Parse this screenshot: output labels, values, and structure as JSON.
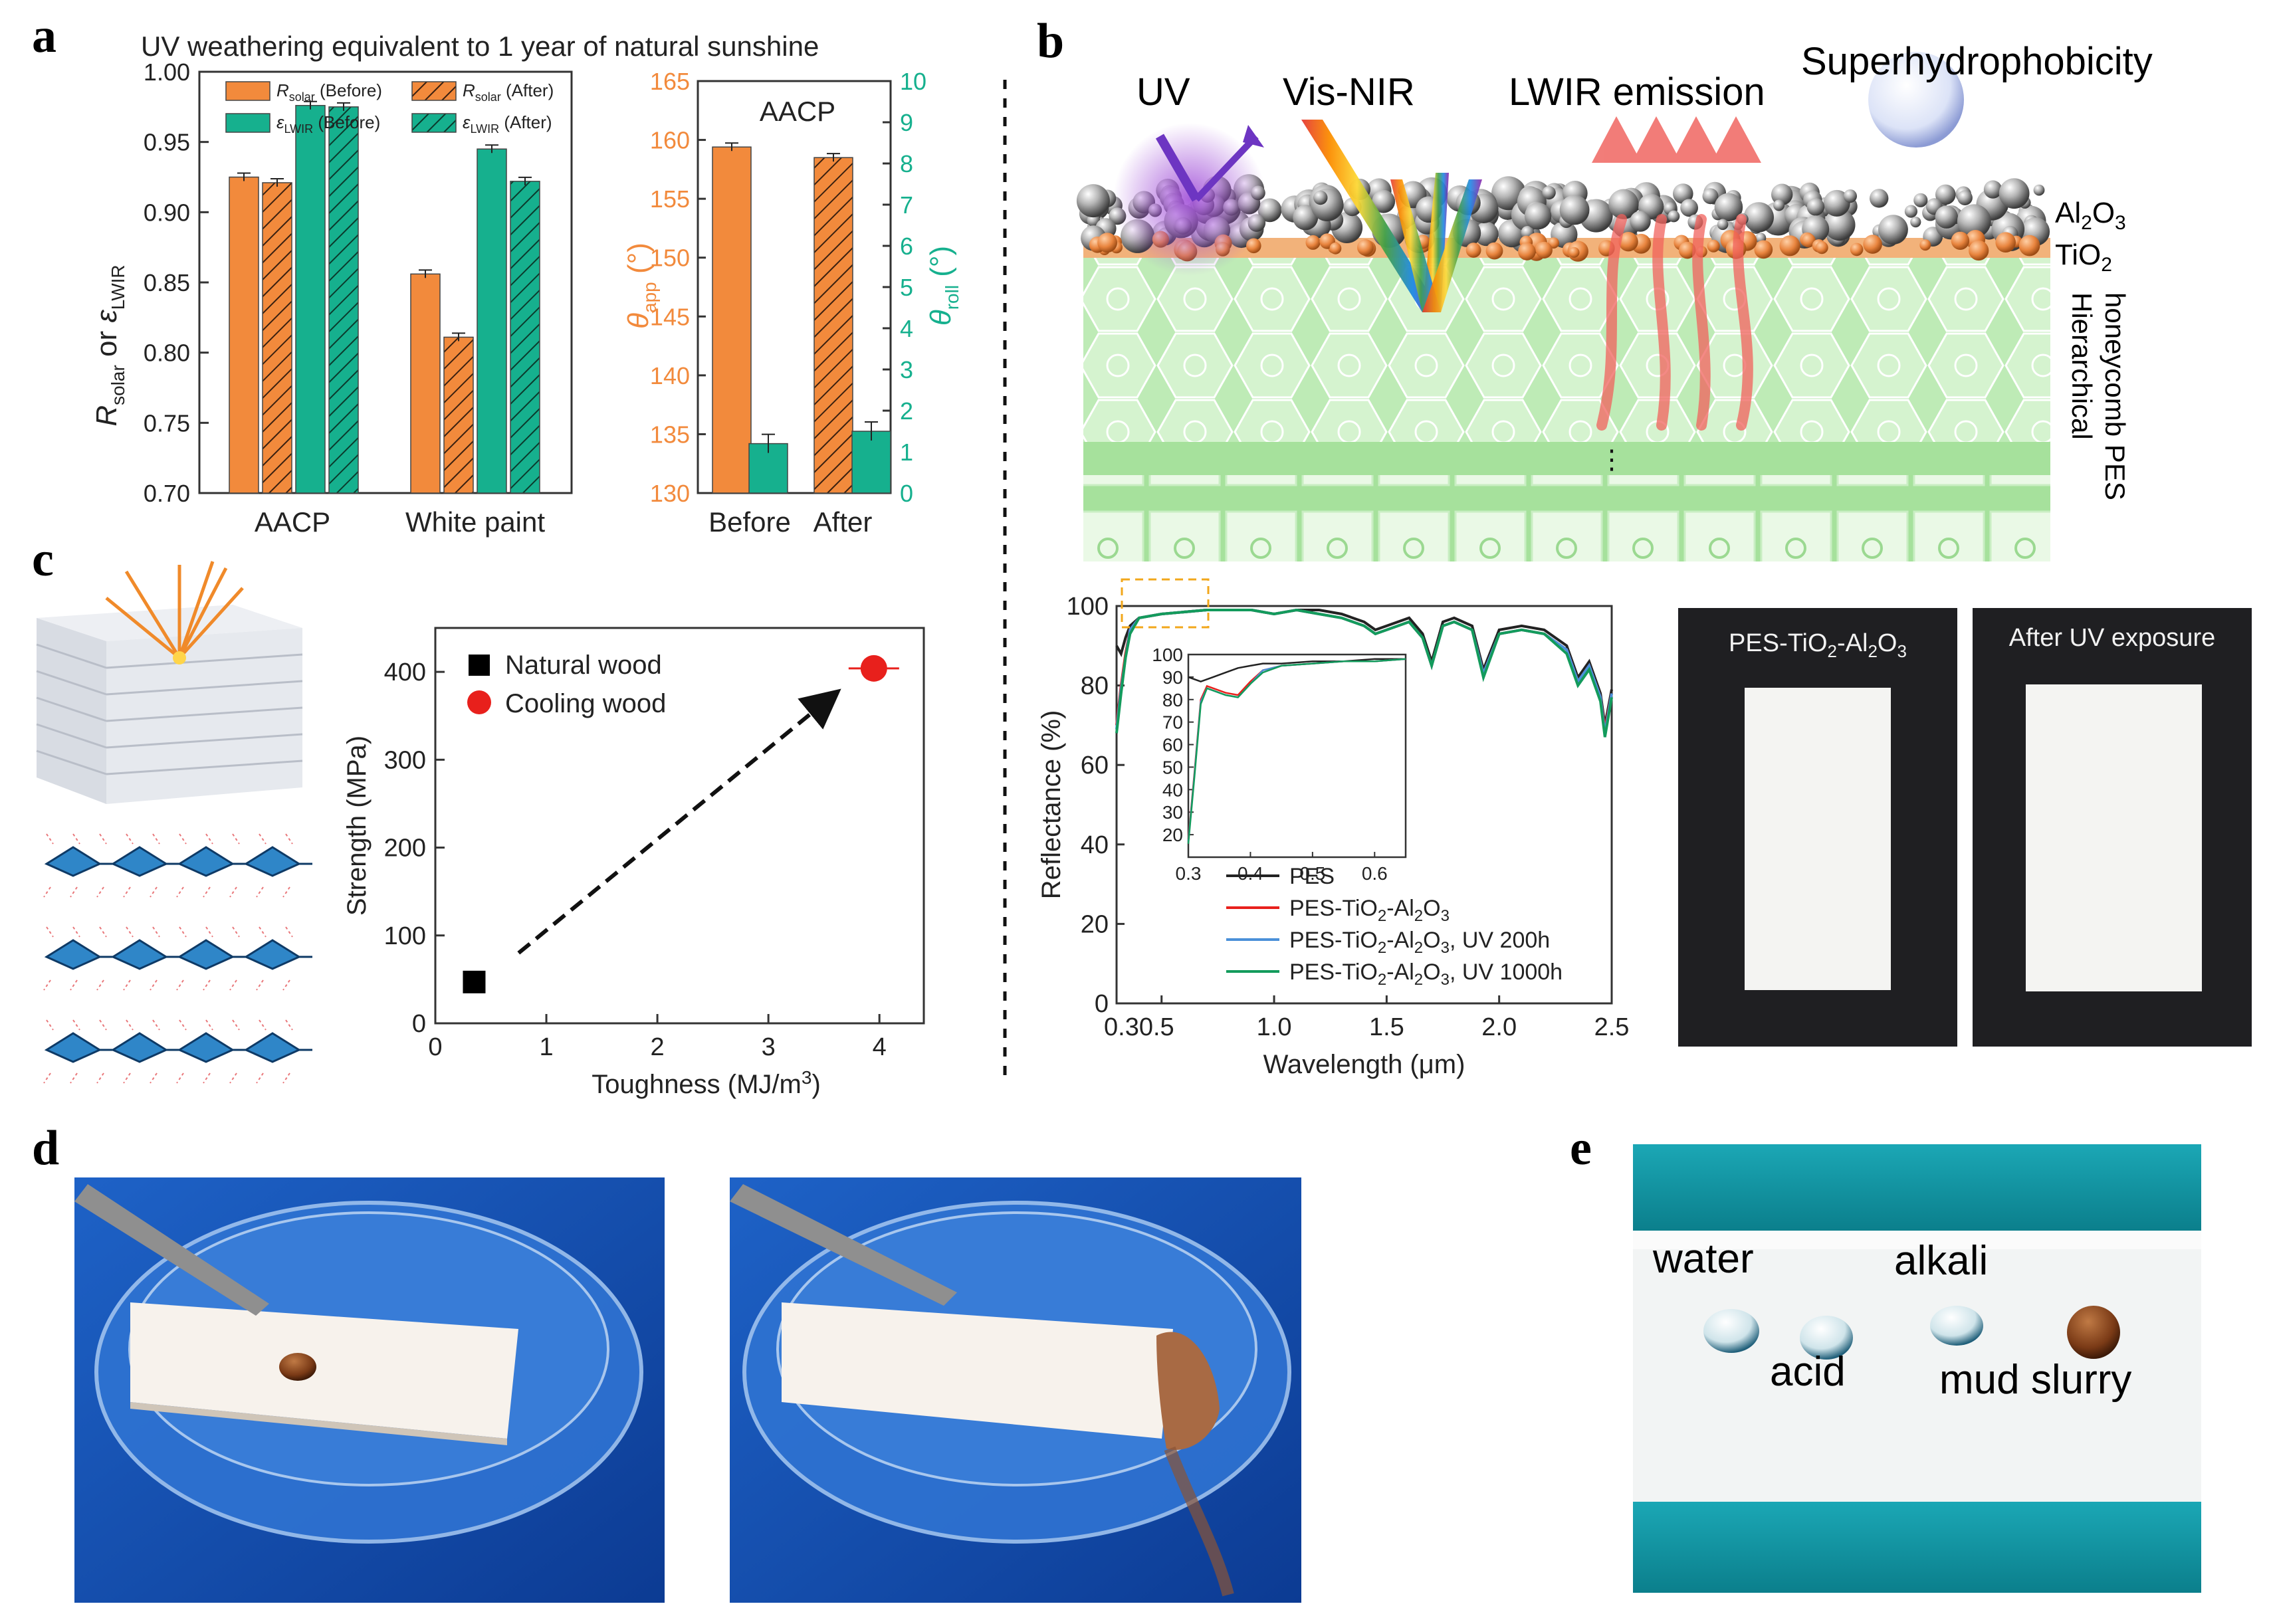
{
  "panel_letters": {
    "a": "a",
    "b": "b",
    "c": "c",
    "d": "d",
    "e": "e"
  },
  "panel_a": {
    "title": "UV weathering equivalent to 1 year of natural sunshine",
    "colors": {
      "orange": "#F28A3C",
      "teal": "#16B08E",
      "right_axis": "#16B08E",
      "left_axis2": "#F28A3C"
    }
  },
  "chart_data": [
    {
      "type": "bar",
      "panel": "a-left",
      "categories": [
        "AACP",
        "White paint"
      ],
      "series": [
        {
          "name": "R̄solar (Before)",
          "values": [
            0.925,
            0.856
          ]
        },
        {
          "name": "R̄solar (After)",
          "values": [
            0.921,
            0.811
          ]
        },
        {
          "name": "ε̄LWIR (Before)",
          "values": [
            0.976,
            0.945
          ]
        },
        {
          "name": "ε̄LWIR (After)",
          "values": [
            0.975,
            0.922
          ]
        }
      ],
      "ylabel": "R̄solar or ε̄LWIR",
      "ylim": [
        0.7,
        1.0
      ],
      "yticks": [
        "0.70",
        "0.75",
        "0.80",
        "0.85",
        "0.90",
        "0.95",
        "1.00"
      ],
      "legend": [
        "R̄solar (Before)",
        "R̄solar (After)",
        "ε̄LWIR (Before)",
        "ε̄LWIR (After)"
      ],
      "legend_placement": "top"
    },
    {
      "type": "bar",
      "panel": "a-right",
      "title": "AACP",
      "categories": [
        "Before",
        "After"
      ],
      "series": [
        {
          "name": "θapp",
          "axis": "left",
          "values": [
            159.4,
            158.5
          ]
        },
        {
          "name": "θroll",
          "axis": "right",
          "values": [
            1.2,
            1.5
          ]
        }
      ],
      "ylabel_left": "θapp (°)",
      "ylabel_right": "θroll (°)",
      "ylim_left": [
        130,
        165
      ],
      "ylim_right": [
        0,
        10
      ],
      "yticks_left": [
        "130",
        "135",
        "140",
        "145",
        "150",
        "155",
        "160",
        "165"
      ],
      "yticks_right": [
        "0",
        "1",
        "2",
        "3",
        "4",
        "5",
        "6",
        "7",
        "8",
        "9",
        "10"
      ]
    },
    {
      "type": "scatter",
      "panel": "c",
      "series": [
        {
          "name": "Natural wood",
          "color": "#000000",
          "marker": "square",
          "x": [
            0.35
          ],
          "y": [
            47
          ]
        },
        {
          "name": "Cooling wood",
          "color": "#E8201C",
          "marker": "circle",
          "x": [
            3.95
          ],
          "y": [
            404
          ]
        }
      ],
      "xlabel": "Toughness (MJ/m³)",
      "ylabel": "Strength (MPa)",
      "xlim": [
        0,
        4.4
      ],
      "ylim": [
        0,
        450
      ],
      "xticks": [
        "0",
        "1",
        "2",
        "3",
        "4"
      ],
      "yticks": [
        "0",
        "100",
        "200",
        "300",
        "400"
      ],
      "arrow": {
        "from": [
          0.75,
          80
        ],
        "to": [
          3.6,
          375
        ]
      },
      "legend_placement": "top-left"
    },
    {
      "type": "line",
      "panel": "b-spectrum",
      "xlabel": "Wavelength (μm)",
      "ylabel": "Reflectance (%)",
      "xlim": [
        0.3,
        2.5
      ],
      "ylim": [
        0,
        100
      ],
      "xticks": [
        "0.3",
        "0.5",
        "1.0",
        "1.5",
        "2.0",
        "2.5"
      ],
      "xtick_labels_drawn": [
        "0.30.5",
        "1.0",
        "1.5",
        "2.0",
        "2.5"
      ],
      "yticks": [
        "0",
        "20",
        "40",
        "60",
        "80",
        "100"
      ],
      "legend": [
        "PES",
        "PES-TiO2-Al2O3",
        "PES-TiO2-Al2O3, UV 200h",
        "PES-TiO2-Al2O3, UV 1000h"
      ],
      "series": [
        {
          "name": "PES",
          "color": "#222222",
          "x": [
            0.3,
            0.32,
            0.34,
            0.36,
            0.4,
            0.5,
            0.7,
            0.9,
            1.0,
            1.1,
            1.2,
            1.3,
            1.4,
            1.45,
            1.5,
            1.6,
            1.66,
            1.7,
            1.75,
            1.8,
            1.88,
            1.93,
            2.0,
            2.1,
            2.2,
            2.3,
            2.35,
            2.4,
            2.45,
            2.47,
            2.5
          ],
          "y": [
            90,
            88,
            92,
            95,
            97,
            98,
            99,
            99,
            98,
            99,
            99,
            98,
            96,
            94,
            95,
            97,
            93,
            86,
            96,
            97,
            95,
            84,
            94,
            95,
            94,
            90,
            82,
            86,
            78,
            70,
            79
          ]
        },
        {
          "name": "PES-TiO2-Al2O3",
          "color": "#E8201C",
          "x": [
            0.3,
            0.32,
            0.34,
            0.36,
            0.4,
            0.5,
            0.7,
            0.9,
            1.0,
            1.1,
            1.2,
            1.3,
            1.4,
            1.45,
            1.5,
            1.6,
            1.66,
            1.7,
            1.75,
            1.8,
            1.88,
            1.93,
            2.0,
            2.1,
            2.2,
            2.3,
            2.35,
            2.4,
            2.45,
            2.47,
            2.5
          ],
          "y": [
            70,
            80,
            88,
            94,
            97,
            98,
            99,
            99,
            98,
            99,
            98,
            97,
            95,
            93,
            94,
            96,
            92,
            85,
            95,
            96,
            94,
            83,
            93,
            94,
            93,
            89,
            81,
            85,
            77,
            69,
            78
          ]
        },
        {
          "name": "PES-TiO2-Al2O3, UV 200h",
          "color": "#4A90D9",
          "x": [
            0.3,
            0.32,
            0.34,
            0.36,
            0.4,
            0.5,
            0.7,
            0.9,
            1.0,
            1.1,
            1.2,
            1.3,
            1.4,
            1.45,
            1.5,
            1.6,
            1.66,
            1.7,
            1.75,
            1.8,
            1.88,
            1.93,
            2.0,
            2.1,
            2.2,
            2.3,
            2.35,
            2.4,
            2.45,
            2.47,
            2.5
          ],
          "y": [
            69,
            79,
            87,
            94,
            97,
            98,
            99,
            99,
            98,
            99,
            98,
            97,
            95,
            93,
            94,
            96,
            92,
            85,
            95,
            96,
            94,
            83,
            93,
            94,
            93,
            89,
            81,
            85,
            77,
            68,
            78
          ]
        },
        {
          "name": "PES-TiO2-Al2O3, UV 1000h",
          "color": "#139B5C",
          "x": [
            0.3,
            0.32,
            0.34,
            0.36,
            0.4,
            0.5,
            0.7,
            0.9,
            1.0,
            1.1,
            1.2,
            1.3,
            1.4,
            1.45,
            1.5,
            1.6,
            1.66,
            1.7,
            1.75,
            1.8,
            1.88,
            1.93,
            2.0,
            2.1,
            2.2,
            2.3,
            2.35,
            2.4,
            2.45,
            2.47,
            2.5
          ],
          "y": [
            68,
            78,
            87,
            93,
            97,
            98,
            99,
            99,
            98,
            99,
            98,
            97,
            95,
            93,
            94,
            96,
            92,
            85,
            95,
            96,
            94,
            82,
            93,
            94,
            93,
            88,
            80,
            84,
            76,
            67,
            77
          ]
        }
      ],
      "inset": {
        "xlim": [
          0.3,
          0.65
        ],
        "ylim": [
          10,
          100
        ],
        "xticks": [
          "0.3",
          "0.4",
          "0.5",
          "0.6"
        ],
        "yticks": [
          "20",
          "30",
          "40",
          "50",
          "60",
          "70",
          "80",
          "90",
          "100"
        ],
        "series": [
          {
            "name": "PES",
            "x": [
              0.3,
              0.31,
              0.32,
              0.34,
              0.36,
              0.38,
              0.4,
              0.42,
              0.45,
              0.5,
              0.55,
              0.6,
              0.65
            ],
            "y": [
              90,
              89,
              88,
              90,
              92,
              94,
              95,
              96,
              96,
              97,
              97,
              98,
              98
            ]
          },
          {
            "name": "PES-TiO2-Al2O3",
            "x": [
              0.3,
              0.31,
              0.32,
              0.33,
              0.34,
              0.36,
              0.38,
              0.4,
              0.42,
              0.45,
              0.5,
              0.55,
              0.6,
              0.65
            ],
            "y": [
              18,
              48,
              80,
              86,
              85,
              83,
              82,
              88,
              93,
              95,
              96,
              97,
              97,
              98
            ]
          },
          {
            "name": "PES-TiO2-Al2O3, UV 200h",
            "x": [
              0.3,
              0.31,
              0.32,
              0.33,
              0.34,
              0.36,
              0.38,
              0.4,
              0.42,
              0.45,
              0.5,
              0.55,
              0.6,
              0.65
            ],
            "y": [
              17,
              47,
              79,
              85,
              84,
              82,
              81,
              87,
              93,
              95,
              96,
              97,
              97,
              98
            ]
          },
          {
            "name": "PES-TiO2-Al2O3, UV 1000h",
            "x": [
              0.3,
              0.31,
              0.32,
              0.33,
              0.34,
              0.36,
              0.38,
              0.4,
              0.42,
              0.45,
              0.5,
              0.55,
              0.6,
              0.65
            ],
            "y": [
              16,
              46,
              78,
              85,
              84,
              82,
              81,
              87,
              92,
              95,
              96,
              97,
              97,
              98
            ]
          }
        ]
      }
    }
  ],
  "panel_b": {
    "labels": {
      "uv": "UV",
      "visnir": "Vis-NIR",
      "lwir": "LWIR emission",
      "superhydro": "Superhydrophobicity",
      "al2o3_main": "Al",
      "al2o3_sub1": "2",
      "al2o3_mid": "O",
      "al2o3_sub2": "3",
      "tio2_main": "TiO",
      "tio2_sub": "2",
      "side_1": "Hierarchical",
      "side_2": "honeycomb PES"
    },
    "photo_labels": {
      "left_a": "PES-TiO",
      "left_sub1": "2",
      "left_b": "-Al",
      "left_sub2": "2",
      "left_c": "O",
      "left_sub3": "3",
      "right": "After UV exposure"
    },
    "legend_parts": {
      "pes": "PES",
      "pre": "PES-TiO",
      "s2": "2",
      "mid": "-Al",
      "o": "O",
      "s3": "3",
      "uv200": ", UV 200h",
      "uv1000": ", UV 1000h"
    }
  },
  "panel_c": {
    "legend_natural": "Natural wood",
    "legend_cooling": "Cooling wood",
    "xlabel": "Toughness (MJ/m",
    "xlabel_sup": "3",
    "xlabel_end": ")",
    "ylabel": "Strength (MPa)"
  },
  "panel_e": {
    "water": "water",
    "acid": "acid",
    "alkali": "alkali",
    "mud": "mud slurry"
  },
  "panel_a_axes": {
    "left_xcats": [
      "AACP",
      "White paint"
    ],
    "right_title": "AACP",
    "right_xcats": [
      "Before",
      "After"
    ],
    "legend": {
      "r_before_main": "R",
      "r_before_sub": "solar",
      "r_before_end": " (Before)",
      "r_after_main": "R",
      "r_after_sub": "solar",
      "r_after_end": " (After)",
      "e_before_main": "ε",
      "e_before_sub": "LWIR",
      "e_before_end": " (Before)",
      "e_after_main": "ε",
      "e_after_sub": "LWIR",
      "e_after_end": " (After)"
    },
    "ylabel_r": "R",
    "ylabel_r_sub": "solar",
    "ylabel_or": " or ",
    "ylabel_e": "ε",
    "ylabel_e_sub": "LWIR",
    "ylabel_theta": "θ",
    "ylabel_app": "app",
    "ylabel_deg": " (°)",
    "ylabel_roll": "roll"
  }
}
